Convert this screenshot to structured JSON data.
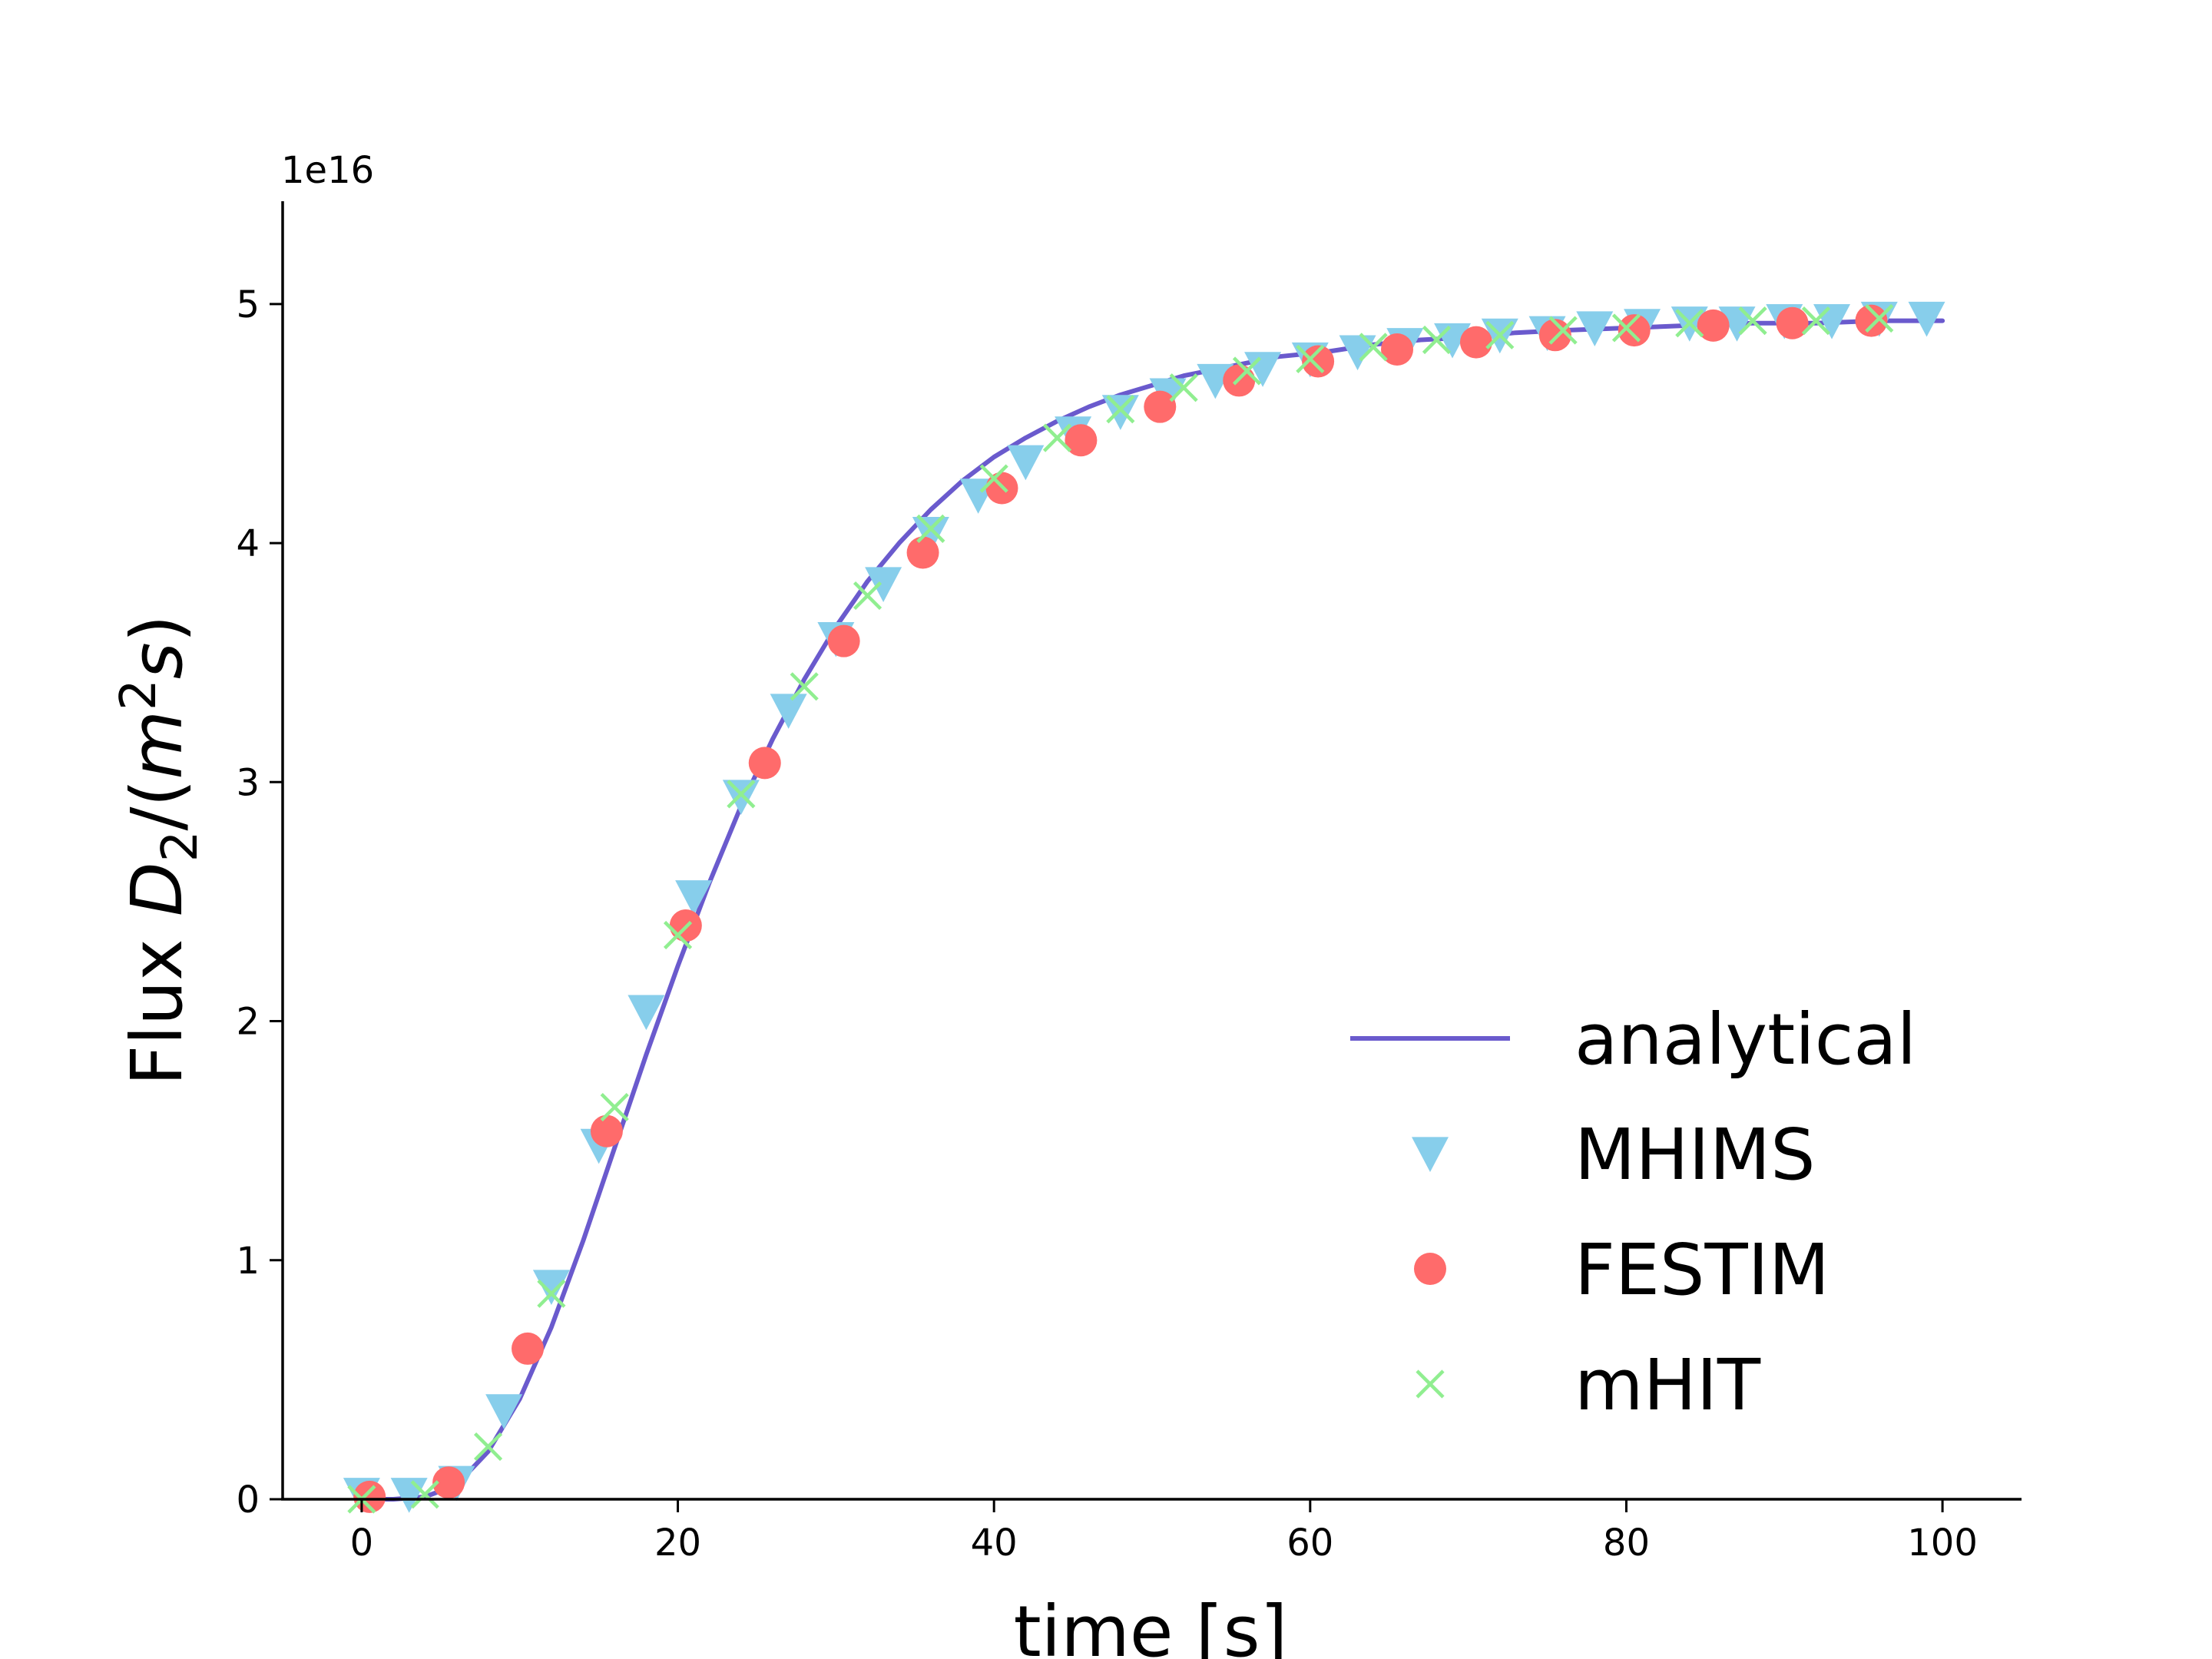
{
  "chart_data": {
    "type": "line",
    "xlabel": "time [s]",
    "ylabel_prefix": "Flux ",
    "ylabel_var": "D",
    "ylabel_sub": "2",
    "ylabel_mid": "/(",
    "ylabel_m": "m",
    "ylabel_sup": "2",
    "ylabel_s": "s",
    "ylabel_close": ")",
    "y_offset_text": "1e16",
    "y_scale": 1e+16,
    "xlim": [
      -5,
      105
    ],
    "ylim": [
      0,
      5.43
    ],
    "x_ticks": [
      0,
      20,
      40,
      60,
      80,
      100
    ],
    "x_tick_labels": [
      "0",
      "20",
      "40",
      "60",
      "80",
      "100"
    ],
    "y_ticks": [
      0,
      1,
      2,
      3,
      4,
      5
    ],
    "y_tick_labels": [
      "0",
      "1",
      "2",
      "3",
      "4",
      "5"
    ],
    "grid": false,
    "legend_position": "lower-right",
    "series": [
      {
        "name": "analytical",
        "kind": "line",
        "color": "#6a5acd",
        "x": [
          0,
          2,
          4,
          6,
          8,
          10,
          12,
          14,
          16,
          18,
          20,
          22,
          24,
          26,
          28,
          30,
          32,
          34,
          36,
          38,
          40,
          42,
          44,
          46,
          48,
          50,
          52,
          55,
          58,
          61,
          64,
          67,
          70,
          73,
          76,
          80,
          84,
          88,
          92,
          96,
          100
        ],
        "y": [
          0.0,
          0.0,
          0.01,
          0.06,
          0.2,
          0.42,
          0.72,
          1.08,
          1.47,
          1.86,
          2.23,
          2.58,
          2.9,
          3.18,
          3.43,
          3.65,
          3.84,
          4.0,
          4.14,
          4.26,
          4.36,
          4.44,
          4.51,
          4.57,
          4.62,
          4.66,
          4.7,
          4.74,
          4.78,
          4.8,
          4.83,
          4.85,
          4.86,
          4.88,
          4.89,
          4.9,
          4.91,
          4.92,
          4.92,
          4.93,
          4.93
        ]
      },
      {
        "name": "MHIMS",
        "kind": "marker",
        "marker": "triangle-down",
        "color": "#87ceeb",
        "x": [
          0,
          3,
          6,
          9,
          12,
          15,
          18,
          21,
          24,
          27,
          30,
          33,
          36,
          39,
          42,
          45,
          48,
          51,
          54,
          57,
          60,
          63,
          66,
          69,
          72,
          75,
          78,
          81,
          84,
          87,
          90,
          93,
          96,
          99
        ],
        "y": [
          0.02,
          0.02,
          0.07,
          0.37,
          0.89,
          1.48,
          2.04,
          2.52,
          2.94,
          3.3,
          3.6,
          3.83,
          4.04,
          4.2,
          4.34,
          4.46,
          4.55,
          4.62,
          4.68,
          4.73,
          4.77,
          4.8,
          4.83,
          4.85,
          4.87,
          4.88,
          4.9,
          4.91,
          4.92,
          4.92,
          4.93,
          4.93,
          4.94,
          4.94
        ]
      },
      {
        "name": "FESTIM",
        "kind": "marker",
        "marker": "circle",
        "color": "#ff6b6b",
        "x": [
          0.5,
          5.5,
          10.5,
          15.5,
          20.5,
          25.5,
          30.5,
          35.5,
          40.5,
          45.5,
          50.5,
          55.5,
          60.5,
          65.5,
          70.5,
          75.5,
          80.5,
          85.5,
          90.5,
          95.5
        ],
        "y": [
          0.01,
          0.07,
          0.63,
          1.54,
          2.4,
          3.08,
          3.59,
          3.96,
          4.23,
          4.43,
          4.57,
          4.68,
          4.76,
          4.81,
          4.84,
          4.87,
          4.89,
          4.91,
          4.92,
          4.93
        ]
      },
      {
        "name": "mHIT",
        "kind": "marker",
        "marker": "x",
        "color": "#90ee90",
        "x": [
          0,
          4,
          8,
          12,
          16,
          20,
          24,
          28,
          32,
          36,
          40,
          44,
          48,
          52,
          56,
          60,
          64,
          68,
          72,
          76,
          80,
          84,
          88,
          92,
          96
        ],
        "y": [
          0.0,
          0.02,
          0.22,
          0.86,
          1.64,
          2.36,
          2.95,
          3.4,
          3.78,
          4.06,
          4.27,
          4.44,
          4.56,
          4.65,
          4.72,
          4.77,
          4.82,
          4.85,
          4.87,
          4.89,
          4.9,
          4.92,
          4.93,
          4.93,
          4.94
        ]
      }
    ]
  }
}
